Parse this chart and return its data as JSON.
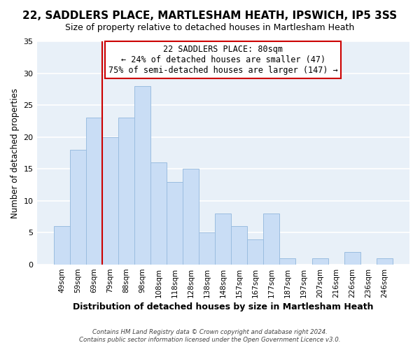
{
  "title1": "22, SADDLERS PLACE, MARTLESHAM HEATH, IPSWICH, IP5 3SS",
  "title2": "Size of property relative to detached houses in Martlesham Heath",
  "xlabel": "Distribution of detached houses by size in Martlesham Heath",
  "ylabel": "Number of detached properties",
  "bar_labels": [
    "49sqm",
    "59sqm",
    "69sqm",
    "79sqm",
    "88sqm",
    "98sqm",
    "108sqm",
    "118sqm",
    "128sqm",
    "138sqm",
    "148sqm",
    "157sqm",
    "167sqm",
    "177sqm",
    "187sqm",
    "197sqm",
    "207sqm",
    "216sqm",
    "226sqm",
    "236sqm",
    "246sqm"
  ],
  "bar_heights": [
    6,
    18,
    23,
    20,
    23,
    28,
    16,
    13,
    15,
    5,
    8,
    6,
    4,
    8,
    1,
    0,
    1,
    0,
    2,
    0,
    1
  ],
  "bar_color": "#c9ddf5",
  "bar_edge_color": "#9bbde0",
  "vline_color": "#cc0000",
  "vline_x_index": 3,
  "annotation_line0": "22 SADDLERS PLACE: 80sqm",
  "annotation_line1": "← 24% of detached houses are smaller (47)",
  "annotation_line2": "75% of semi-detached houses are larger (147) →",
  "annotation_box_color": "#ffffff",
  "annotation_box_edge_color": "#cc0000",
  "ylim": [
    0,
    35
  ],
  "yticks": [
    0,
    5,
    10,
    15,
    20,
    25,
    30,
    35
  ],
  "footer1": "Contains HM Land Registry data © Crown copyright and database right 2024.",
  "footer2": "Contains public sector information licensed under the Open Government Licence v3.0.",
  "bg_color": "#ffffff",
  "plot_bg_color": "#e8f0f8",
  "grid_color": "#ffffff",
  "title1_fontsize": 11,
  "title2_fontsize": 9
}
